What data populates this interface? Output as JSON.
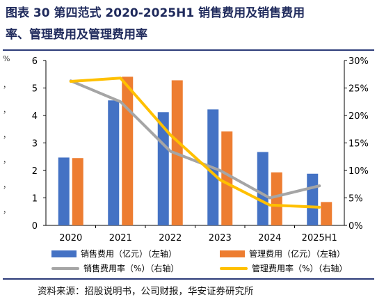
{
  "title": {
    "line1": "图表 30 第四范式 2020-2025H1 销售费用及销售费用",
    "line2": "率、管理费用及管理费用率"
  },
  "left_axis_glyphs": [
    "%",
    "，",
    "，",
    "，",
    "，",
    "，",
    "，"
  ],
  "source": "资料来源：招股说明书，公司财报，华安证券研究所",
  "colors": {
    "sales_fee": "#4472c4",
    "mgmt_fee": "#ed7d31",
    "sales_rate": "#a5a5a5",
    "mgmt_rate": "#ffc000",
    "title": "#1f2a5c"
  },
  "chart_data": {
    "type": "bar",
    "categories": [
      "2020",
      "2021",
      "2022",
      "2023",
      "2024",
      "2025H1"
    ],
    "series": [
      {
        "name": "销售费用（亿元）（左轴）",
        "type": "bar",
        "axis": "left",
        "values": [
          2.47,
          4.55,
          4.12,
          4.22,
          2.67,
          1.88
        ]
      },
      {
        "name": "管理费用（亿元）（左轴）",
        "type": "bar",
        "axis": "left",
        "values": [
          2.45,
          5.41,
          5.28,
          3.42,
          1.93,
          0.85
        ]
      },
      {
        "name": "销售费用率（%）（右轴）",
        "type": "line",
        "axis": "right",
        "values": [
          26.3,
          22.5,
          13.5,
          10.0,
          5.0,
          7.2
        ]
      },
      {
        "name": "管理费用率（%）（右轴）",
        "type": "line",
        "axis": "right",
        "values": [
          26.2,
          26.8,
          16.5,
          8.3,
          3.7,
          3.3
        ]
      }
    ],
    "left_axis": {
      "ylim": [
        0,
        6
      ],
      "ticks": [
        "0",
        "1",
        "2",
        "3",
        "4",
        "5",
        "6"
      ]
    },
    "right_axis": {
      "ylim": [
        0,
        30
      ],
      "ticks": [
        "0%",
        "5%",
        "10%",
        "15%",
        "20%",
        "25%",
        "30%"
      ]
    },
    "grid": false,
    "legend_position": "bottom"
  }
}
